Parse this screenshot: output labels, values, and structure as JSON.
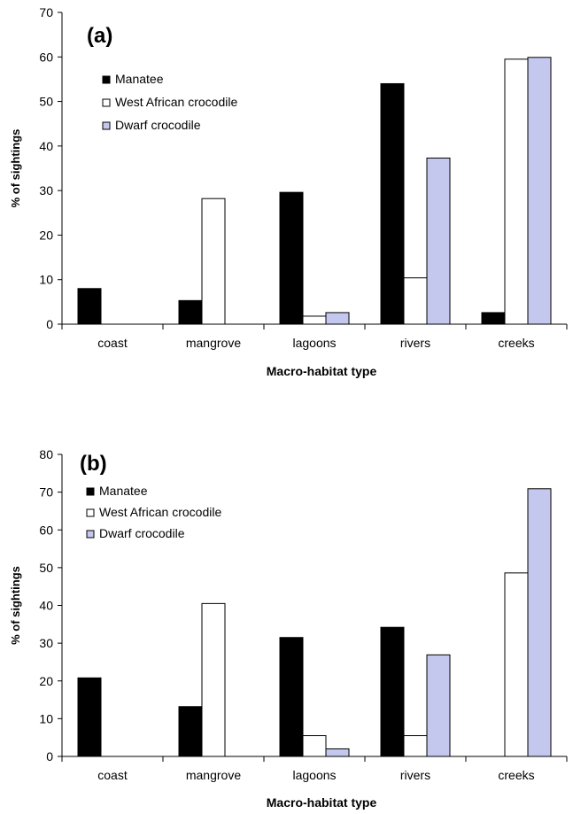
{
  "colors": {
    "manatee": "#000000",
    "west_african": "#ffffff",
    "dwarf": "#c5c8ee",
    "stroke": "#000000"
  },
  "chart_data": [
    {
      "type": "bar",
      "panel_label": "(a)",
      "categories": [
        "coast",
        "mangrove",
        "lagoons",
        "rivers",
        "creeks"
      ],
      "series": [
        {
          "name": "Manatee",
          "values": [
            8,
            5.3,
            29.6,
            54,
            2.6
          ]
        },
        {
          "name": "West African crocodile",
          "values": [
            0,
            28.2,
            1.8,
            10.4,
            59.5
          ]
        },
        {
          "name": "Dwarf crocodile",
          "values": [
            0,
            0,
            2.6,
            37.3,
            59.9
          ]
        }
      ],
      "xlabel": "Macro-habitat type",
      "ylabel": "% of sightings",
      "ylim": [
        0,
        70
      ],
      "yticks": [
        0,
        10,
        20,
        30,
        40,
        50,
        60,
        70
      ],
      "grid": false,
      "legend": "top-left"
    },
    {
      "type": "bar",
      "panel_label": "(b)",
      "categories": [
        "coast",
        "mangrove",
        "lagoons",
        "rivers",
        "creeks"
      ],
      "series": [
        {
          "name": "Manatee",
          "values": [
            20.8,
            13.2,
            31.5,
            34.2,
            0
          ]
        },
        {
          "name": "West African crocodile",
          "values": [
            0,
            40.5,
            5.5,
            5.5,
            48.6
          ]
        },
        {
          "name": "Dwarf crocodile",
          "values": [
            0,
            0,
            2,
            26.9,
            70.9
          ]
        }
      ],
      "xlabel": "Macro-habitat type",
      "ylabel": "% of sightings",
      "ylim": [
        0,
        80
      ],
      "yticks": [
        0,
        10,
        20,
        30,
        40,
        50,
        60,
        70,
        80
      ],
      "grid": false,
      "legend": "top-left"
    }
  ]
}
